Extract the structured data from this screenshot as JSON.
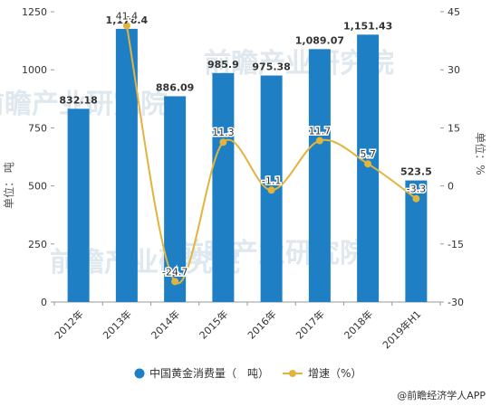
{
  "chart_data": {
    "type": "bar",
    "categories": [
      "2012年",
      "2013年",
      "2014年",
      "2015年",
      "2016年",
      "2017年",
      "2018年",
      "2019年H1"
    ],
    "series": [
      {
        "name": "中国黄金消费量（吨）",
        "type": "bar",
        "axis": "left",
        "values": [
          832.18,
          1176.4,
          886.09,
          985.9,
          975.38,
          1089.07,
          1151.43,
          523.5
        ],
        "labels": [
          "832.18",
          "1,176.4",
          "886.09",
          "985.9",
          "975.38",
          "1,089.07",
          "1,151.43",
          "523.5"
        ]
      },
      {
        "name": "增速（%）",
        "type": "line",
        "axis": "right",
        "values": [
          null,
          41.4,
          -24.7,
          11.3,
          -1.1,
          11.7,
          5.7,
          -3.3
        ],
        "labels": [
          "",
          "41.4",
          "-24.7",
          "11.3",
          "-1.1",
          "11.7",
          "5.7",
          "-3.3"
        ]
      }
    ],
    "ylabel": "单位：  吨",
    "y2label": "单位：%",
    "ylim": [
      0,
      1250
    ],
    "y2lim": [
      -30,
      45
    ],
    "yticks": [
      0,
      250,
      500,
      750,
      1000,
      1250
    ],
    "y2ticks": [
      -30,
      -15,
      0,
      15,
      30,
      45
    ],
    "grid": false,
    "legend_position": "bottom",
    "colors": {
      "bar": "#1f7fc4",
      "line": "#e3b43c"
    }
  },
  "legend": {
    "bar_label": "中国黄金消费量（　吨）",
    "line_label": "增速（%）"
  },
  "source": {
    "text": "@前瞻经济学人APP"
  },
  "watermark": {
    "text": "前瞻产业研究院"
  }
}
